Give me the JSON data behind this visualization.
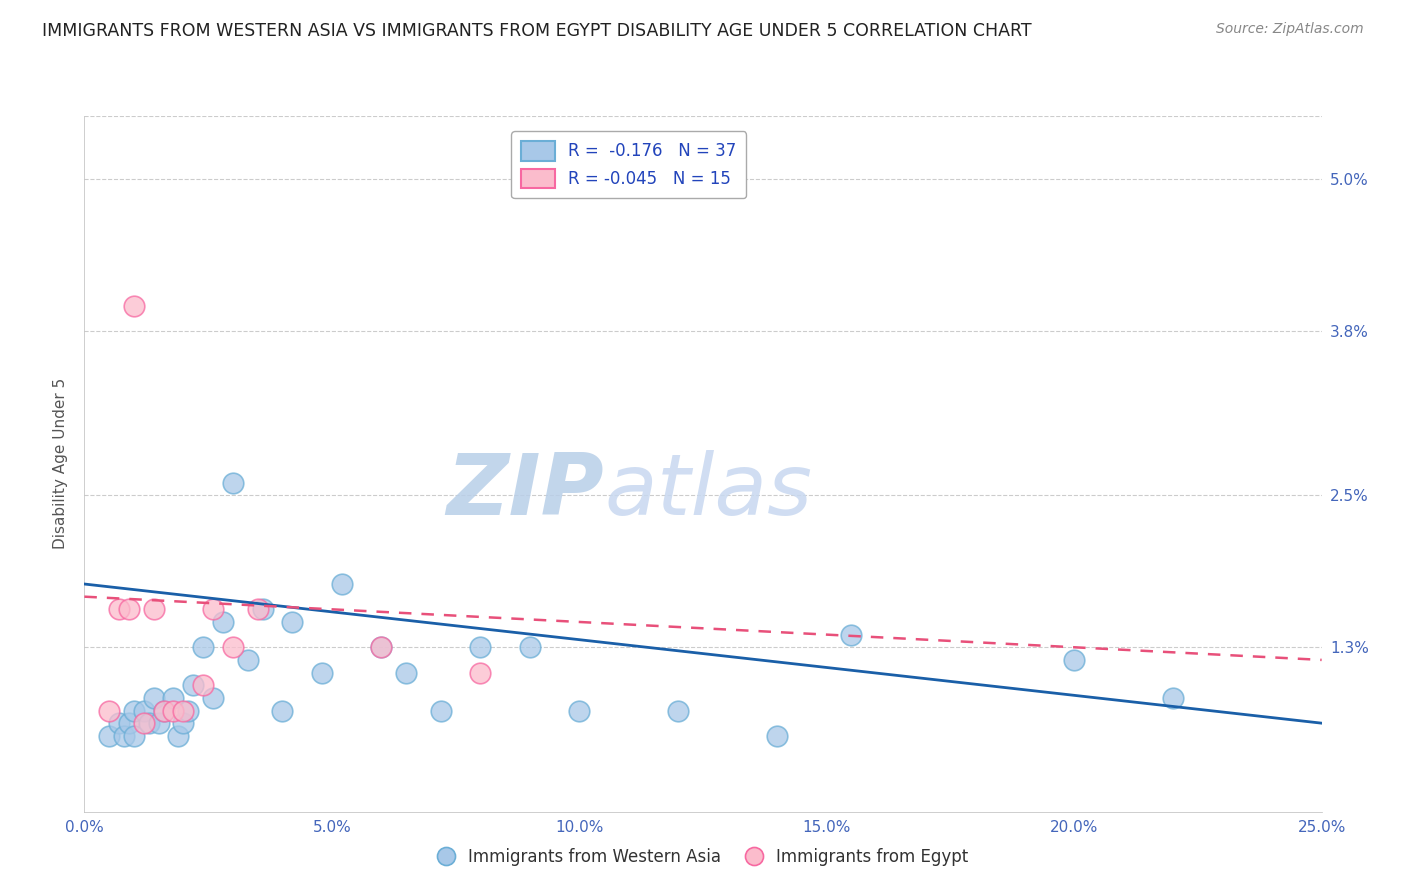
{
  "title": "IMMIGRANTS FROM WESTERN ASIA VS IMMIGRANTS FROM EGYPT DISABILITY AGE UNDER 5 CORRELATION CHART",
  "source": "Source: ZipAtlas.com",
  "ylabel": "Disability Age Under 5",
  "xlim": [
    0.0,
    0.25
  ],
  "ylim": [
    0.0,
    0.055
  ],
  "yticks": [
    0.013,
    0.025,
    0.038,
    0.05
  ],
  "ytick_labels": [
    "1.3%",
    "2.5%",
    "3.8%",
    "5.0%"
  ],
  "xticks": [
    0.0,
    0.05,
    0.1,
    0.15,
    0.2,
    0.25
  ],
  "xtick_labels": [
    "0.0%",
    "5.0%",
    "10.0%",
    "15.0%",
    "20.0%",
    "25.0%"
  ],
  "series1_name": "Immigrants from Western Asia",
  "series1_color": "#a8c8e8",
  "series1_edge_color": "#6baed6",
  "series1_R": "-0.176",
  "series1_N": "37",
  "series1_x": [
    0.005,
    0.007,
    0.008,
    0.009,
    0.01,
    0.01,
    0.012,
    0.013,
    0.014,
    0.015,
    0.016,
    0.018,
    0.019,
    0.02,
    0.021,
    0.022,
    0.024,
    0.026,
    0.028,
    0.03,
    0.033,
    0.036,
    0.04,
    0.042,
    0.048,
    0.052,
    0.06,
    0.065,
    0.072,
    0.08,
    0.09,
    0.1,
    0.12,
    0.14,
    0.155,
    0.2,
    0.22
  ],
  "series1_y": [
    0.006,
    0.007,
    0.006,
    0.007,
    0.008,
    0.006,
    0.008,
    0.007,
    0.009,
    0.007,
    0.008,
    0.009,
    0.006,
    0.007,
    0.008,
    0.01,
    0.013,
    0.009,
    0.015,
    0.026,
    0.012,
    0.016,
    0.008,
    0.015,
    0.011,
    0.018,
    0.013,
    0.011,
    0.008,
    0.013,
    0.013,
    0.008,
    0.008,
    0.006,
    0.014,
    0.012,
    0.009
  ],
  "series2_name": "Immigrants from Egypt",
  "series2_color": "#fbbccc",
  "series2_edge_color": "#f768a1",
  "series2_R": "-0.045",
  "series2_N": "15",
  "series2_x": [
    0.005,
    0.007,
    0.009,
    0.01,
    0.012,
    0.014,
    0.016,
    0.018,
    0.02,
    0.024,
    0.026,
    0.03,
    0.035,
    0.06,
    0.08
  ],
  "series2_y": [
    0.008,
    0.016,
    0.016,
    0.04,
    0.007,
    0.016,
    0.008,
    0.008,
    0.008,
    0.01,
    0.016,
    0.013,
    0.016,
    0.013,
    0.011
  ],
  "watermark_zip": "ZIP",
  "watermark_atlas": "atlas",
  "watermark_color_zip": "#b8cfe8",
  "watermark_color_atlas": "#c8d8f0",
  "trend1_color": "#1a5fa8",
  "trend2_color": "#e8507a",
  "background_color": "#ffffff",
  "grid_color": "#cccccc",
  "title_color": "#222222",
  "tick_color": "#4466bb",
  "legend_text_color": "#2244bb",
  "ylabel_color": "#555555"
}
